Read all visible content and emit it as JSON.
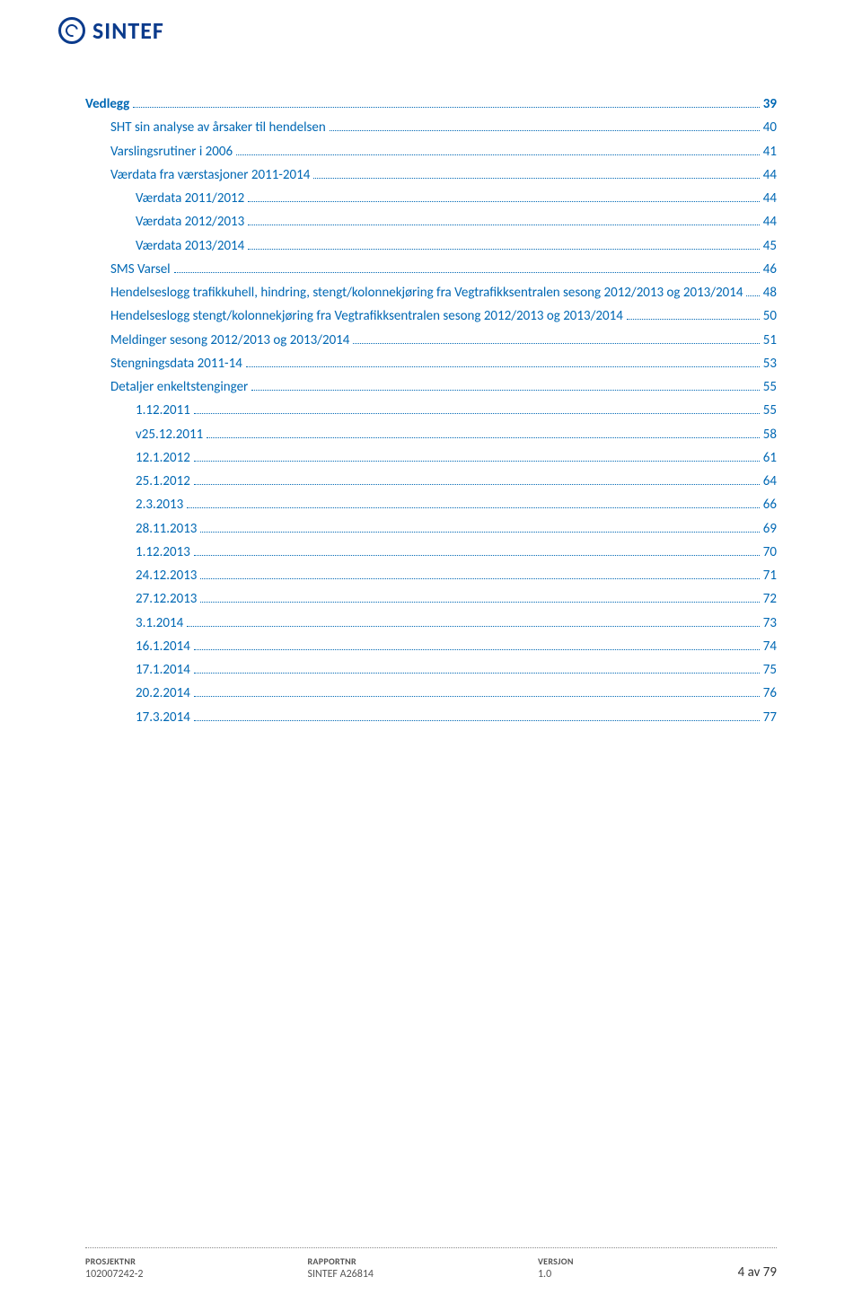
{
  "brand": {
    "name": "SINTEF"
  },
  "toc": [
    {
      "label": "Vedlegg",
      "page": "39",
      "level": 0,
      "bold": true
    },
    {
      "label": "SHT sin analyse av årsaker til hendelsen",
      "page": "40",
      "level": 1,
      "bold": false
    },
    {
      "label": "Varslingsrutiner i 2006",
      "page": "41",
      "level": 1,
      "bold": false
    },
    {
      "label": "Værdata fra værstasjoner 2011-2014",
      "page": "44",
      "level": 1,
      "bold": false
    },
    {
      "label": "Værdata 2011/2012",
      "page": "44",
      "level": 2,
      "bold": false
    },
    {
      "label": "Værdata 2012/2013",
      "page": "44",
      "level": 2,
      "bold": false
    },
    {
      "label": "Værdata 2013/2014",
      "page": "45",
      "level": 2,
      "bold": false
    },
    {
      "label": "SMS Varsel",
      "page": "46",
      "level": 1,
      "bold": false
    },
    {
      "label": "Hendelseslogg trafikkuhell, hindring, stengt/kolonnekjøring fra Vegtrafikksentralen sesong 2012/2013 og 2013/2014",
      "page": "48",
      "level": 1,
      "bold": false
    },
    {
      "label": "Hendelseslogg stengt/kolonnekjøring fra Vegtrafikksentralen sesong 2012/2013 og 2013/2014",
      "page": "50",
      "level": 1,
      "bold": false
    },
    {
      "label": "Meldinger sesong 2012/2013 og 2013/2014",
      "page": "51",
      "level": 1,
      "bold": false
    },
    {
      "label": "Stengningsdata 2011-14",
      "page": "53",
      "level": 1,
      "bold": false
    },
    {
      "label": "Detaljer enkeltstenginger",
      "page": "55",
      "level": 1,
      "bold": false
    },
    {
      "label": "1.12.2011",
      "page": "55",
      "level": 2,
      "bold": false
    },
    {
      "label": "v25.12.2011",
      "page": "58",
      "level": 2,
      "bold": false
    },
    {
      "label": "12.1.2012",
      "page": "61",
      "level": 2,
      "bold": false
    },
    {
      "label": "25.1.2012",
      "page": "64",
      "level": 2,
      "bold": false
    },
    {
      "label": "2.3.2013",
      "page": "66",
      "level": 2,
      "bold": false
    },
    {
      "label": "28.11.2013",
      "page": "69",
      "level": 2,
      "bold": false
    },
    {
      "label": "1.12.2013",
      "page": "70",
      "level": 2,
      "bold": false
    },
    {
      "label": "24.12.2013",
      "page": "71",
      "level": 2,
      "bold": false
    },
    {
      "label": "27.12.2013",
      "page": "72",
      "level": 2,
      "bold": false
    },
    {
      "label": "3.1.2014",
      "page": "73",
      "level": 2,
      "bold": false
    },
    {
      "label": "16.1.2014",
      "page": "74",
      "level": 2,
      "bold": false
    },
    {
      "label": "17.1.2014",
      "page": "75",
      "level": 2,
      "bold": false
    },
    {
      "label": "20.2.2014",
      "page": "76",
      "level": 2,
      "bold": false
    },
    {
      "label": "17.3.2014",
      "page": "77",
      "level": 2,
      "bold": false
    }
  ],
  "footer": {
    "col1_label": "PROSJEKTNR",
    "col1_value": "102007242-2",
    "col2_label": "RAPPORTNR",
    "col2_value": "SINTEF A26814",
    "col3_label": "VERSJON",
    "col3_value": "1.0",
    "page_text": "4 av 79"
  },
  "colors": {
    "brand_blue": "#0b3b8c",
    "link_blue": "#0068b4",
    "footer_grey": "#555"
  }
}
